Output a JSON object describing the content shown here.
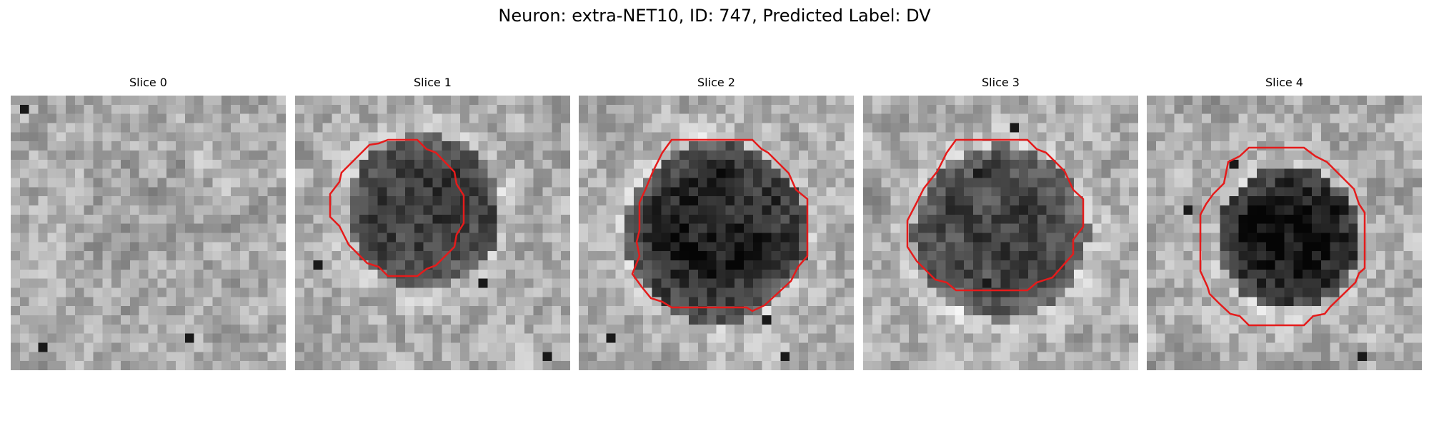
{
  "figure": {
    "title": "Neuron: extra-NET10, ID: 747, Predicted Label: DV"
  },
  "panels": [
    {
      "label": "Slice 0",
      "has_contour": false,
      "blob_darkness": 0.05,
      "blob_cx": 0.5,
      "blob_cy": 0.5,
      "blob_r": 0.3,
      "seed": 11
    },
    {
      "label": "Slice 1",
      "has_contour": true,
      "blob_darkness": 0.45,
      "blob_cx": 0.47,
      "blob_cy": 0.42,
      "blob_r": 0.28,
      "seed": 23
    },
    {
      "label": "Slice 2",
      "has_contour": true,
      "blob_darkness": 0.55,
      "blob_cx": 0.5,
      "blob_cy": 0.5,
      "blob_r": 0.33,
      "seed": 37
    },
    {
      "label": "Slice 3",
      "has_contour": true,
      "blob_darkness": 0.42,
      "blob_cx": 0.5,
      "blob_cy": 0.5,
      "blob_r": 0.32,
      "seed": 51
    },
    {
      "label": "Slice 4",
      "has_contour": true,
      "blob_darkness": 0.6,
      "blob_cx": 0.52,
      "blob_cy": 0.52,
      "blob_r": 0.26,
      "seed": 67
    }
  ],
  "colors": {
    "contour": "#e51b1b"
  }
}
